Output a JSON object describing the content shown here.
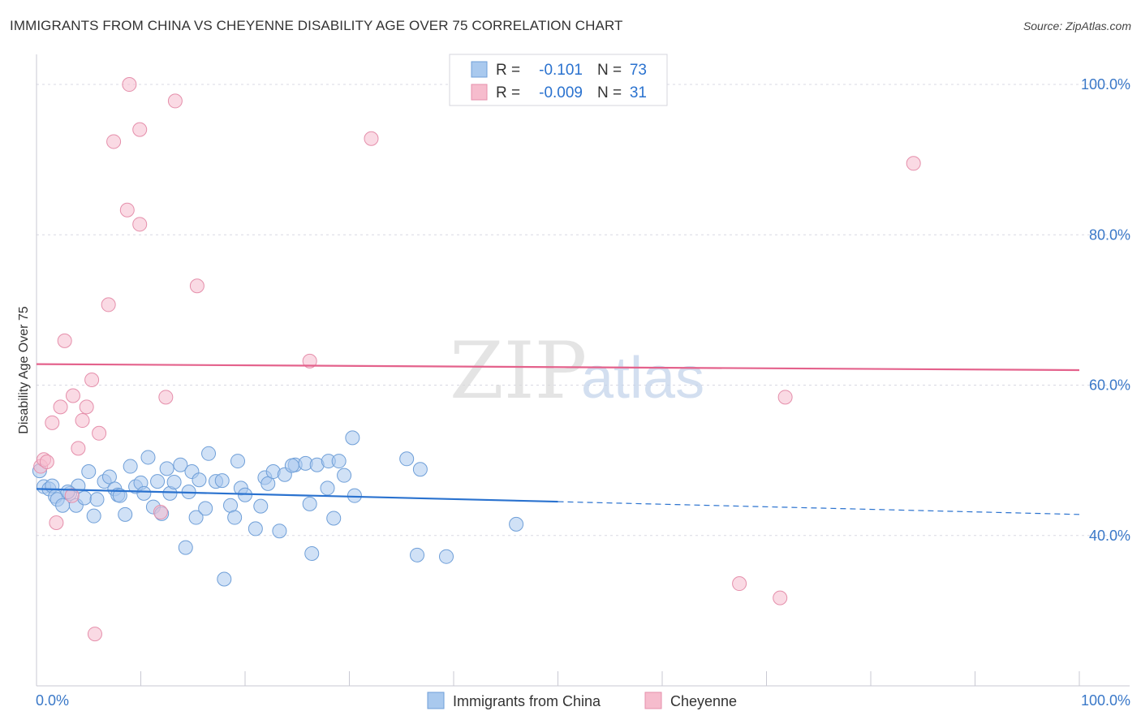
{
  "header": {
    "title": "IMMIGRANTS FROM CHINA VS CHEYENNE DISABILITY AGE OVER 75 CORRELATION CHART",
    "source": "Source: ZipAtlas.com"
  },
  "watermark": {
    "zip": "ZIP",
    "atlas": "atlas"
  },
  "colors": {
    "china_fill": "#a9c9ee",
    "china_stroke": "#6f9fd8",
    "china_line": "#2a72cf",
    "cheyenne_fill": "#f6bccd",
    "cheyenne_stroke": "#e58fab",
    "cheyenne_line": "#e4628c",
    "axis_label": "#3a78c8",
    "grid": "#d9d9e3"
  },
  "chart_data": {
    "type": "scatter",
    "title": "IMMIGRANTS FROM CHINA VS CHEYENNE DISABILITY AGE OVER 75 CORRELATION CHART",
    "xlabel": "",
    "ylabel": "Disability Age Over 75",
    "xlim": [
      0,
      100
    ],
    "ylim": [
      20,
      104
    ],
    "x_tick_labels": [
      {
        "value": 0,
        "label": "0.0%"
      },
      {
        "value": 100,
        "label": "100.0%"
      }
    ],
    "y_tick_labels": [
      {
        "value": 40,
        "label": "40.0%"
      },
      {
        "value": 60,
        "label": "60.0%"
      },
      {
        "value": 80,
        "label": "80.0%"
      },
      {
        "value": 100,
        "label": "100.0%"
      }
    ],
    "legend_stats": [
      {
        "r_label": "R =",
        "r_value": "-0.101",
        "n_label": "N =",
        "n_value": "73"
      },
      {
        "r_label": "R =",
        "r_value": "-0.009",
        "n_label": "N =",
        "n_value": "31"
      }
    ],
    "series": [
      {
        "name": "Immigrants from China",
        "r": -0.101,
        "n": 73,
        "trend": {
          "x_start": 0,
          "y_start": 46.2,
          "x_solid_end": 50,
          "x_end": 100,
          "y_end": 42.8
        },
        "points": [
          [
            0.3,
            48.6
          ],
          [
            0.7,
            46.5
          ],
          [
            1.2,
            46.2
          ],
          [
            1.5,
            46.6
          ],
          [
            1.8,
            45.2
          ],
          [
            2.0,
            44.8
          ],
          [
            2.5,
            44.0
          ],
          [
            3.2,
            45.6
          ],
          [
            3.8,
            44.0
          ],
          [
            4.0,
            46.6
          ],
          [
            4.6,
            45.0
          ],
          [
            5.0,
            48.5
          ],
          [
            5.5,
            42.6
          ],
          [
            5.8,
            44.8
          ],
          [
            6.5,
            47.2
          ],
          [
            7.0,
            47.8
          ],
          [
            7.5,
            46.2
          ],
          [
            7.8,
            45.4
          ],
          [
            8.5,
            42.8
          ],
          [
            9.0,
            49.2
          ],
          [
            9.5,
            46.5
          ],
          [
            10.0,
            47.0
          ],
          [
            10.3,
            45.6
          ],
          [
            10.7,
            50.4
          ],
          [
            11.2,
            43.8
          ],
          [
            11.6,
            47.2
          ],
          [
            12.0,
            42.9
          ],
          [
            12.5,
            48.9
          ],
          [
            12.8,
            45.6
          ],
          [
            13.2,
            47.1
          ],
          [
            13.8,
            49.4
          ],
          [
            14.3,
            38.4
          ],
          [
            14.6,
            45.8
          ],
          [
            14.9,
            48.5
          ],
          [
            15.3,
            42.4
          ],
          [
            15.6,
            47.4
          ],
          [
            16.2,
            43.6
          ],
          [
            16.5,
            50.9
          ],
          [
            17.2,
            47.2
          ],
          [
            18.0,
            34.2
          ],
          [
            18.6,
            44.0
          ],
          [
            19.0,
            42.4
          ],
          [
            19.3,
            49.9
          ],
          [
            19.6,
            46.3
          ],
          [
            20.0,
            45.4
          ],
          [
            21.0,
            40.9
          ],
          [
            21.5,
            43.9
          ],
          [
            21.9,
            47.7
          ],
          [
            22.2,
            46.9
          ],
          [
            22.7,
            48.5
          ],
          [
            23.3,
            40.6
          ],
          [
            23.8,
            48.1
          ],
          [
            24.8,
            49.4
          ],
          [
            25.8,
            49.6
          ],
          [
            26.2,
            44.2
          ],
          [
            26.4,
            37.6
          ],
          [
            26.9,
            49.4
          ],
          [
            28.0,
            49.9
          ],
          [
            27.9,
            46.3
          ],
          [
            28.5,
            42.3
          ],
          [
            29.0,
            49.9
          ],
          [
            30.5,
            45.3
          ],
          [
            30.3,
            53.0
          ],
          [
            35.5,
            50.2
          ],
          [
            36.8,
            48.8
          ],
          [
            36.5,
            37.4
          ],
          [
            39.3,
            37.2
          ],
          [
            46.0,
            41.5
          ],
          [
            3.0,
            45.8
          ],
          [
            8.0,
            45.3
          ],
          [
            17.8,
            47.3
          ],
          [
            24.5,
            49.3
          ],
          [
            29.5,
            48.0
          ]
        ]
      },
      {
        "name": "Cheyenne",
        "r": -0.009,
        "n": 31,
        "trend": {
          "x_start": 0,
          "y_start": 62.8,
          "x_solid_end": 100,
          "x_end": 100,
          "y_end": 62.0
        },
        "points": [
          [
            0.4,
            49.2
          ],
          [
            0.7,
            50.1
          ],
          [
            1.0,
            49.8
          ],
          [
            1.5,
            55.0
          ],
          [
            1.9,
            41.7
          ],
          [
            2.3,
            57.1
          ],
          [
            2.7,
            65.9
          ],
          [
            3.4,
            45.3
          ],
          [
            3.5,
            58.6
          ],
          [
            4.0,
            51.6
          ],
          [
            4.4,
            55.3
          ],
          [
            4.8,
            57.1
          ],
          [
            5.3,
            60.7
          ],
          [
            5.6,
            26.9
          ],
          [
            6.0,
            53.6
          ],
          [
            6.9,
            70.7
          ],
          [
            7.4,
            92.4
          ],
          [
            8.7,
            83.3
          ],
          [
            8.9,
            100.0
          ],
          [
            9.9,
            81.4
          ],
          [
            9.9,
            94.0
          ],
          [
            11.9,
            43.1
          ],
          [
            12.4,
            58.4
          ],
          [
            13.3,
            97.8
          ],
          [
            15.4,
            73.2
          ],
          [
            26.2,
            63.2
          ],
          [
            32.1,
            92.8
          ],
          [
            67.4,
            33.6
          ],
          [
            71.3,
            31.7
          ],
          [
            71.8,
            58.4
          ],
          [
            84.1,
            89.5
          ]
        ]
      }
    ],
    "legend": {
      "position": "bottom-center"
    }
  }
}
